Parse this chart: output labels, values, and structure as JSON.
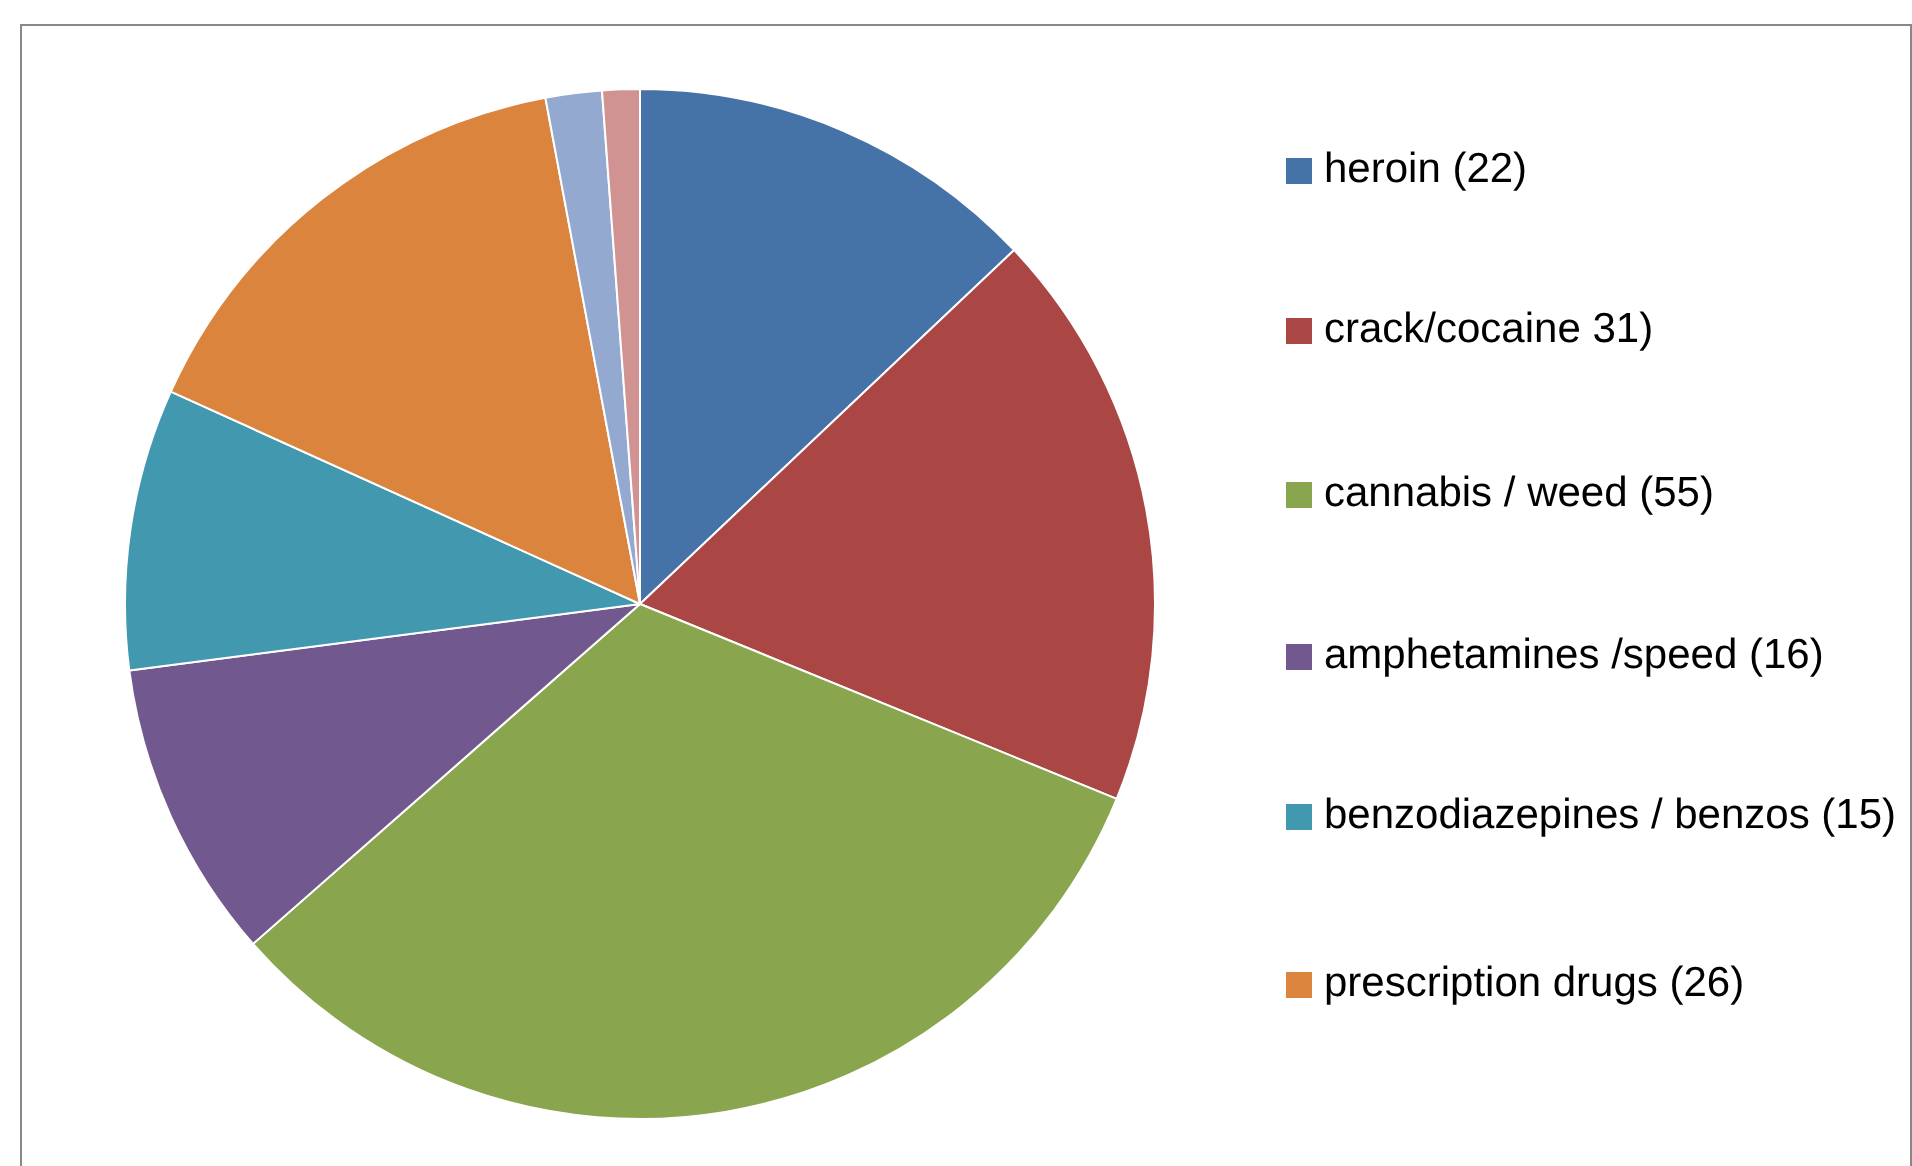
{
  "chart_data": {
    "type": "pie",
    "categories": [
      "heroin (22)",
      "crack/cocaine 31)",
      "cannabis / weed (55)",
      "amphetamines /speed (16)",
      "benzodiazepines / benzos (15)",
      "prescription drugs (26)",
      null,
      null
    ],
    "values": [
      22,
      31,
      55,
      16,
      15,
      26,
      3,
      2
    ],
    "colors": [
      "#4572a7",
      "#aa4643",
      "#89a54e",
      "#71588f",
      "#4198af",
      "#db843d",
      "#93a9cf",
      "#d19392"
    ],
    "legend": "right"
  }
}
